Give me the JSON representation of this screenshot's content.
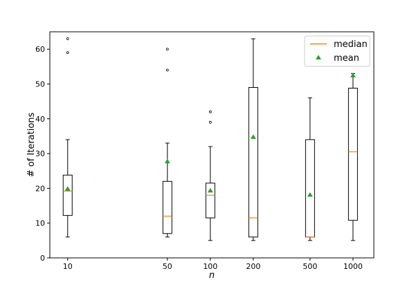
{
  "chart_data": {
    "type": "box",
    "xlabel": "n",
    "ylabel": "# of Iterations",
    "x_scale": "log",
    "xlim": [
      7.5,
      1400
    ],
    "ylim": [
      0,
      65
    ],
    "yticks": [
      0,
      10,
      20,
      30,
      40,
      50,
      60
    ],
    "grid": false,
    "legend": {
      "placement": "top-right",
      "entries": [
        {
          "label": "median",
          "marker": "line",
          "color": "#ff7f0e"
        },
        {
          "label": "mean",
          "marker": "triangle",
          "color": "#2ca02c"
        }
      ]
    },
    "boxes": [
      {
        "x": 10,
        "label": "10",
        "whisker_low": 6,
        "q1": 12.2,
        "median": 19.2,
        "q3": 23.8,
        "whisker_high": 34,
        "mean": 19.8,
        "outliers": [
          59,
          63
        ]
      },
      {
        "x": 50,
        "label": "50",
        "whisker_low": 6,
        "q1": 7,
        "median": 12,
        "q3": 22,
        "whisker_high": 33,
        "mean": 27.7,
        "outliers": [
          54,
          60
        ]
      },
      {
        "x": 100,
        "label": "100",
        "whisker_low": 5,
        "q1": 11.5,
        "median": 18,
        "q3": 21.5,
        "whisker_high": 32,
        "mean": 19.3,
        "outliers": [
          39,
          42
        ]
      },
      {
        "x": 200,
        "label": "200",
        "whisker_low": 5,
        "q1": 6,
        "median": 11.5,
        "q3": 49,
        "whisker_high": 63,
        "mean": 34.7,
        "outliers": []
      },
      {
        "x": 500,
        "label": "500",
        "whisker_low": 5,
        "q1": 6,
        "median": 6,
        "q3": 34,
        "whisker_high": 46,
        "mean": 18.1,
        "outliers": []
      },
      {
        "x": 1000,
        "label": "1000",
        "whisker_low": 5,
        "q1": 10.8,
        "median": 30.5,
        "q3": 48.8,
        "whisker_high": 53,
        "mean": 52.4,
        "outliers": []
      }
    ],
    "colors": {
      "box": "#000000",
      "median": "#ff7f0e",
      "mean": "#2ca02c"
    }
  }
}
